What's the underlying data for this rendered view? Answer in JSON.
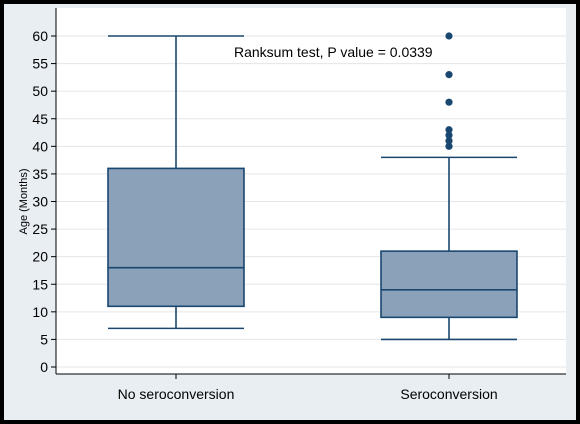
{
  "chart_data": {
    "type": "box",
    "ylabel": "Age (Months)",
    "ylim": [
      0,
      60
    ],
    "yticks": [
      0,
      5,
      10,
      15,
      20,
      25,
      30,
      35,
      40,
      45,
      50,
      55,
      60
    ],
    "grid": true,
    "categories": [
      "No seroconversion",
      "Seroconversion"
    ],
    "boxes": [
      {
        "category": "No seroconversion",
        "min": 7,
        "q1": 11,
        "median": 18,
        "q3": 36,
        "max": 60,
        "outliers": []
      },
      {
        "category": "Seroconversion",
        "min": 5,
        "q1": 9,
        "median": 14,
        "q3": 21,
        "max": 38,
        "outliers": [
          40,
          41,
          42,
          43,
          48,
          53,
          60
        ]
      }
    ],
    "annotation": "Ranksum test, P value = 0.0339",
    "colors": {
      "box_fill": "#8ba1b9",
      "box_stroke": "#1a476f",
      "outlier": "#1a476f",
      "plot_bg": "#ffffff",
      "outer_bg": "#e9eef3",
      "grid": "#e3e6ea"
    }
  }
}
